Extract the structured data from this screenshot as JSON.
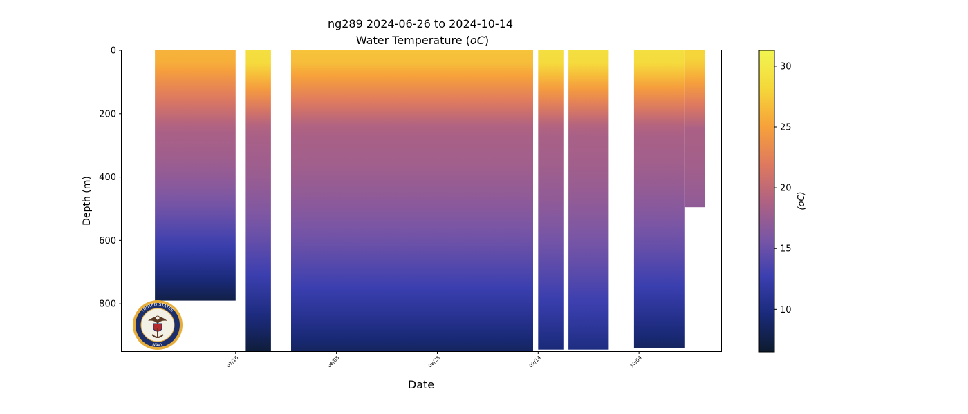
{
  "chart_data": {
    "type": "heatmap",
    "title": "ng289 2024-06-26 to 2024-10-14",
    "subtitle": "Water Temperature (",
    "subtitle_symbol": "oC",
    "subtitle_end": ")",
    "xlabel": "Date",
    "ylabel": "Depth (m)",
    "x_start": "2024-06-26",
    "x_end": "2024-10-14",
    "x_ticks": [
      "07/16",
      "08/05",
      "08/25",
      "09/14",
      "10/04"
    ],
    "y_ticks": [
      0,
      200,
      400,
      600,
      800
    ],
    "ylim": [
      950,
      0
    ],
    "y_inverted": true,
    "colorbar": {
      "label": "(oC)",
      "ticks": [
        10,
        15,
        20,
        25,
        30
      ],
      "range": [
        6.5,
        31.3
      ],
      "colormap": [
        "#0d1b2e",
        "#1a2a7a",
        "#3b3fb0",
        "#7a56a5",
        "#b06282",
        "#e07a5e",
        "#f7a23a",
        "#f5d83a",
        "#f1f551"
      ]
    },
    "segments": [
      {
        "start": "2024-06-30",
        "end": "2024-07-16",
        "max_depth": 790,
        "surface_temp": 26,
        "deep_temp": 7.5
      },
      {
        "start": "2024-07-18",
        "end": "2024-07-23",
        "max_depth": 950,
        "surface_temp": 29,
        "deep_temp": 7
      },
      {
        "start": "2024-07-27",
        "end": "2024-09-13",
        "max_depth": 950,
        "surface_temp": 27,
        "deep_temp": 8.5
      },
      {
        "start": "2024-09-14",
        "end": "2024-09-19",
        "max_depth": 945,
        "surface_temp": 29,
        "deep_temp": 9.5
      },
      {
        "start": "2024-09-20",
        "end": "2024-09-28",
        "max_depth": 945,
        "surface_temp": 29,
        "deep_temp": 10
      },
      {
        "start": "2024-10-03",
        "end": "2024-10-13",
        "max_depth": 940,
        "surface_temp": 29,
        "deep_temp": 8.5
      },
      {
        "start": "2024-10-13",
        "end": "2024-10-17",
        "max_depth": 495,
        "surface_temp": 28,
        "deep_temp": 17
      }
    ],
    "logo": {
      "text": "UNITED STATES NAVY",
      "top": "UNITED STATES",
      "bottom": "NAVY"
    },
    "grid": false
  }
}
